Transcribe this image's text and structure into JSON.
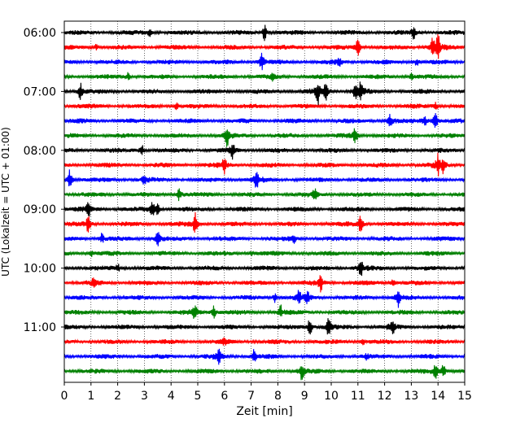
{
  "chart_data": {
    "type": "line",
    "title": "",
    "xlabel": "Zeit  [min]",
    "ylabel": "UTC (Lokalzeit = UTC + 01:00)",
    "xlim": [
      0,
      15
    ],
    "x_ticks": [
      "0",
      "1",
      "2",
      "3",
      "4",
      "5",
      "6",
      "7",
      "8",
      "9",
      "10",
      "11",
      "12",
      "13",
      "14",
      "15"
    ],
    "y_ticks": [
      "06:00",
      "07:00",
      "08:00",
      "09:00",
      "10:00",
      "11:00"
    ],
    "grid": "vertical dotted",
    "trace_interval_minutes": 15,
    "trace_start": "06:00",
    "trace_count": 24,
    "trace_colors": [
      "#000000",
      "#ff0000",
      "#0000ff",
      "#008000"
    ],
    "traces": [
      {
        "start": "06:00",
        "color": "#000000",
        "events": [
          [
            3.2,
            0.4
          ],
          [
            7.5,
            0.8
          ],
          [
            13.1,
            0.7
          ]
        ]
      },
      {
        "start": "06:15",
        "color": "#ff0000",
        "events": [
          [
            1.2,
            0.3
          ],
          [
            11.0,
            0.9
          ],
          [
            13.8,
            1.0
          ],
          [
            14.0,
            1.2
          ]
        ]
      },
      {
        "start": "06:30",
        "color": "#0000ff",
        "events": [
          [
            7.4,
            0.9
          ],
          [
            10.3,
            0.4
          ],
          [
            13.2,
            0.4
          ]
        ]
      },
      {
        "start": "06:45",
        "color": "#008000",
        "events": [
          [
            2.4,
            0.4
          ],
          [
            7.8,
            0.3
          ],
          [
            13.0,
            0.3
          ]
        ]
      },
      {
        "start": "07:00",
        "color": "#000000",
        "events": [
          [
            0.6,
            0.9
          ],
          [
            9.5,
            1.3
          ],
          [
            9.8,
            0.9
          ],
          [
            10.9,
            0.8
          ],
          [
            11.1,
            0.9
          ]
        ]
      },
      {
        "start": "07:15",
        "color": "#ff0000",
        "events": [
          [
            4.2,
            0.4
          ],
          [
            13.9,
            0.5
          ]
        ]
      },
      {
        "start": "07:30",
        "color": "#0000ff",
        "events": [
          [
            12.2,
            0.7
          ],
          [
            13.5,
            0.6
          ],
          [
            13.9,
            0.9
          ]
        ]
      },
      {
        "start": "07:45",
        "color": "#008000",
        "events": [
          [
            6.1,
            1.0
          ],
          [
            10.9,
            0.8
          ]
        ]
      },
      {
        "start": "08:00",
        "color": "#000000",
        "events": [
          [
            2.9,
            0.7
          ],
          [
            6.3,
            0.8
          ]
        ]
      },
      {
        "start": "08:15",
        "color": "#ff0000",
        "events": [
          [
            6.0,
            0.9
          ],
          [
            14.0,
            1.0
          ],
          [
            14.2,
            0.9
          ]
        ]
      },
      {
        "start": "08:30",
        "color": "#0000ff",
        "events": [
          [
            0.2,
            1.1
          ],
          [
            3.0,
            0.5
          ],
          [
            7.2,
            1.0
          ]
        ]
      },
      {
        "start": "08:45",
        "color": "#008000",
        "events": [
          [
            4.3,
            0.7
          ],
          [
            9.4,
            0.7
          ]
        ]
      },
      {
        "start": "09:00",
        "color": "#000000",
        "events": [
          [
            0.9,
            0.9
          ],
          [
            3.3,
            0.7
          ],
          [
            3.5,
            0.6
          ]
        ]
      },
      {
        "start": "09:15",
        "color": "#ff0000",
        "events": [
          [
            0.9,
            0.9
          ],
          [
            4.9,
            1.1
          ],
          [
            11.1,
            0.9
          ]
        ]
      },
      {
        "start": "09:30",
        "color": "#0000ff",
        "events": [
          [
            1.4,
            0.5
          ],
          [
            3.5,
            0.9
          ],
          [
            8.6,
            0.4
          ]
        ]
      },
      {
        "start": "09:45",
        "color": "#008000",
        "events": [
          [
            1.0,
            0.3
          ],
          [
            7.0,
            0.3
          ]
        ]
      },
      {
        "start": "10:00",
        "color": "#000000",
        "events": [
          [
            2.0,
            0.4
          ],
          [
            11.1,
            1.2
          ]
        ]
      },
      {
        "start": "10:15",
        "color": "#ff0000",
        "events": [
          [
            1.1,
            0.5
          ],
          [
            9.6,
            1.0
          ],
          [
            12.3,
            0.4
          ]
        ]
      },
      {
        "start": "10:30",
        "color": "#0000ff",
        "events": [
          [
            7.9,
            0.5
          ],
          [
            8.8,
            0.7
          ],
          [
            9.1,
            0.6
          ],
          [
            12.5,
            1.0
          ]
        ]
      },
      {
        "start": "10:45",
        "color": "#008000",
        "events": [
          [
            4.9,
            0.9
          ],
          [
            5.6,
            0.7
          ],
          [
            8.1,
            0.7
          ]
        ]
      },
      {
        "start": "11:00",
        "color": "#000000",
        "events": [
          [
            9.2,
            1.0
          ],
          [
            9.9,
            0.9
          ],
          [
            12.3,
            0.9
          ]
        ]
      },
      {
        "start": "11:15",
        "color": "#ff0000",
        "events": [
          [
            6.0,
            0.3
          ],
          [
            11.2,
            0.3
          ]
        ]
      },
      {
        "start": "11:30",
        "color": "#0000ff",
        "events": [
          [
            5.8,
            0.9
          ],
          [
            7.1,
            0.6
          ],
          [
            11.3,
            0.3
          ]
        ]
      },
      {
        "start": "11:45",
        "color": "#008000",
        "events": [
          [
            8.9,
            0.9
          ],
          [
            13.9,
            0.8
          ],
          [
            14.2,
            0.7
          ]
        ]
      }
    ]
  }
}
